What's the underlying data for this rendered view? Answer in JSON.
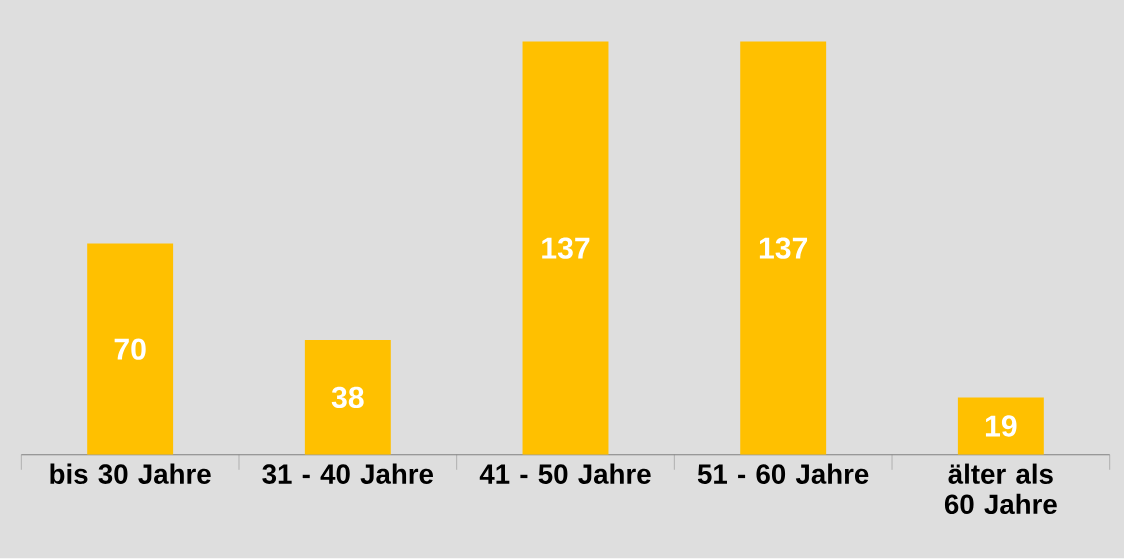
{
  "chart_data": {
    "type": "bar",
    "categories": [
      "bis 30 Jahre",
      "31 - 40 Jahre",
      "41 - 50 Jahre",
      "51 - 60 Jahre",
      "älter als 60 Jahre"
    ],
    "values": [
      70,
      38,
      137,
      137,
      19
    ],
    "color": "#ffc000",
    "data_labels": true
  }
}
